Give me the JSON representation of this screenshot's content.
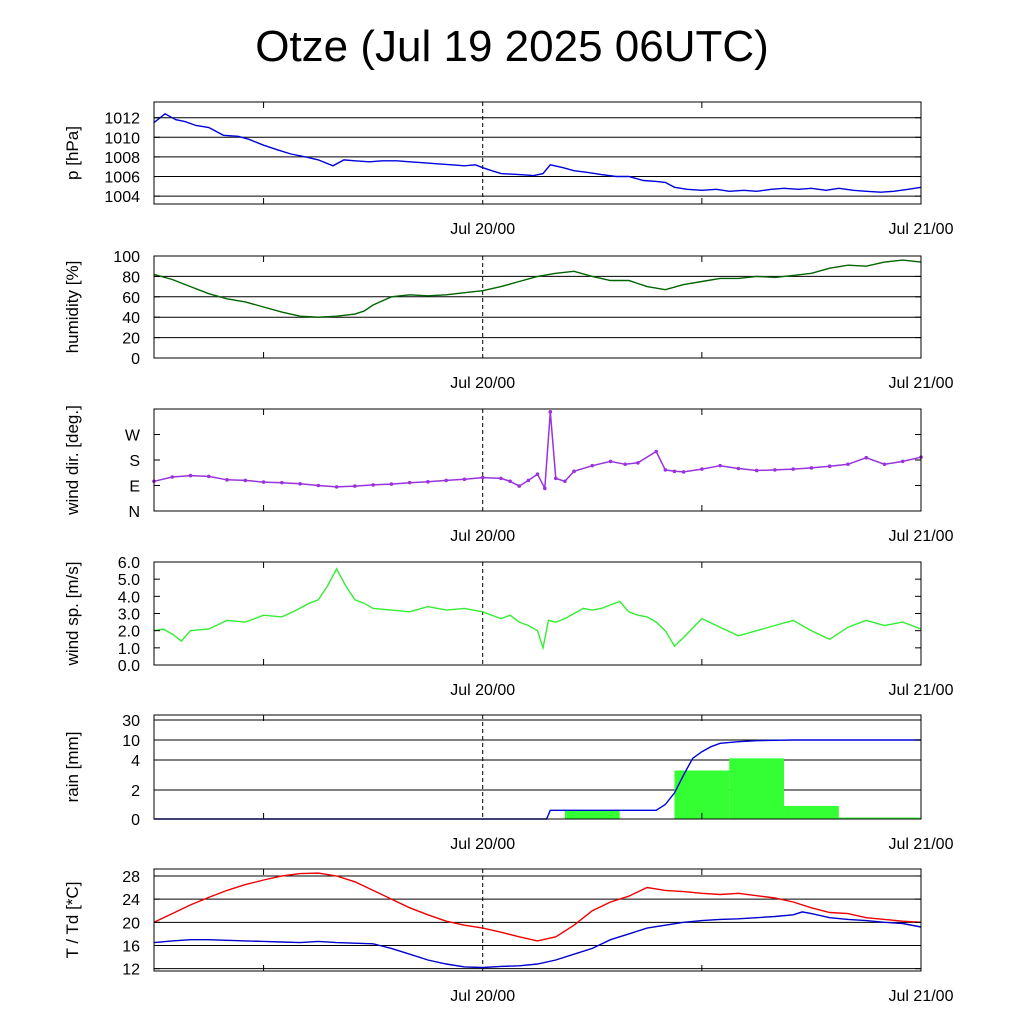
{
  "title": "Otze (Jul 19 2025 06UTC)",
  "colors": {
    "pressure": "#0000dd",
    "humidity": "#006400",
    "wind_dir": "#9933dd",
    "wind_speed": "#33ee33",
    "rain_bar": "#33ff33",
    "rain_line": "#0000dd",
    "temperature": "#ee0000",
    "dewpoint": "#0000cc"
  },
  "chart_data": [
    {
      "type": "line",
      "id": "pressure",
      "ylabel": "p [hPa]",
      "xlim": [
        0,
        42
      ],
      "ylim": [
        1003.2,
        1013.6
      ],
      "yticks": [
        1004,
        1006,
        1008,
        1010,
        1012
      ],
      "ytick_labels": [
        "1004",
        "1006",
        "1008",
        "1010",
        "1012"
      ],
      "xticks": [
        18,
        42
      ],
      "xtick_labels": [
        "Jul 20/00",
        "Jul 21/00"
      ],
      "minor_xticks": [
        6,
        30
      ],
      "vline": 18,
      "grid": true,
      "series": [
        {
          "color_key": "pressure",
          "x": [
            0,
            0.6,
            1.2,
            1.7,
            2.3,
            3.0,
            3.8,
            4.6,
            5.2,
            6.0,
            6.8,
            7.5,
            8.3,
            9.0,
            9.8,
            10.4,
            11.0,
            11.8,
            12.5,
            13.3,
            14.0,
            14.8,
            15.5,
            16.3,
            17.0,
            17.6,
            18.0,
            18.5,
            19.0,
            20.0,
            20.8,
            21.3,
            21.7,
            22.4,
            23.0,
            23.8,
            24.5,
            25.3,
            26.0,
            26.8,
            27.5,
            28.0,
            28.5,
            29.2,
            30.0,
            30.8,
            31.5,
            32.3,
            33.0,
            33.8,
            34.5,
            35.3,
            36.0,
            36.8,
            37.5,
            38.3,
            39.0,
            39.8,
            40.5,
            41.3,
            42.0
          ],
          "y": [
            1011.5,
            1012.4,
            1011.8,
            1011.6,
            1011.2,
            1011.0,
            1010.2,
            1010.1,
            1009.8,
            1009.2,
            1008.7,
            1008.3,
            1008.0,
            1007.7,
            1007.1,
            1007.7,
            1007.6,
            1007.5,
            1007.6,
            1007.6,
            1007.5,
            1007.4,
            1007.3,
            1007.2,
            1007.1,
            1007.2,
            1006.9,
            1006.6,
            1006.3,
            1006.2,
            1006.1,
            1006.3,
            1007.2,
            1006.9,
            1006.6,
            1006.4,
            1006.2,
            1006.0,
            1006.0,
            1005.6,
            1005.5,
            1005.4,
            1004.9,
            1004.7,
            1004.6,
            1004.7,
            1004.5,
            1004.6,
            1004.5,
            1004.7,
            1004.8,
            1004.7,
            1004.8,
            1004.6,
            1004.8,
            1004.6,
            1004.5,
            1004.4,
            1004.5,
            1004.7,
            1004.9
          ]
        }
      ]
    },
    {
      "type": "line",
      "id": "humidity",
      "ylabel": "humidity [%]",
      "xlim": [
        0,
        42
      ],
      "ylim": [
        0,
        100
      ],
      "yticks": [
        0,
        20,
        40,
        60,
        80,
        100
      ],
      "ytick_labels": [
        "0",
        "20",
        "40",
        "60",
        "80",
        "100"
      ],
      "xticks": [
        18,
        42
      ],
      "xtick_labels": [
        "Jul 20/00",
        "Jul 21/00"
      ],
      "minor_xticks": [
        6,
        30
      ],
      "vline": 18,
      "grid": true,
      "series": [
        {
          "color_key": "humidity",
          "x": [
            0,
            1.0,
            2.0,
            3.0,
            4.0,
            5.0,
            6.0,
            7.0,
            8.0,
            9.0,
            10.0,
            11.0,
            11.5,
            12.0,
            13.0,
            14.0,
            15.0,
            16.0,
            17.0,
            18.0,
            19.0,
            20.0,
            21.0,
            22.0,
            23.0,
            24.0,
            25.0,
            26.0,
            27.0,
            28.0,
            29.0,
            30.0,
            31.0,
            32.0,
            33.0,
            34.0,
            35.0,
            36.0,
            37.0,
            38.0,
            39.0,
            40.0,
            41.0,
            42.0
          ],
          "y": [
            82,
            77,
            70,
            63,
            58,
            55,
            50,
            45,
            41,
            40,
            41,
            43,
            46,
            52,
            60,
            62,
            61,
            62,
            64,
            66,
            70,
            75,
            80,
            83,
            85,
            80,
            76,
            76,
            70,
            67,
            72,
            75,
            78,
            78,
            80,
            79,
            81,
            83,
            88,
            91,
            90,
            94,
            96,
            94
          ]
        }
      ]
    },
    {
      "type": "scatter",
      "id": "wind_dir",
      "ylabel": "wind dir. [deg.]",
      "xlim": [
        0,
        42
      ],
      "ylim": [
        0,
        360
      ],
      "yticks": [
        0,
        90,
        180,
        270
      ],
      "ytick_labels": [
        "N",
        "E",
        "S",
        "W"
      ],
      "xticks": [
        18,
        42
      ],
      "xtick_labels": [
        "Jul 20/00",
        "Jul 21/00"
      ],
      "minor_xticks": [
        6,
        30
      ],
      "vline": 18,
      "grid": false,
      "series": [
        {
          "color_key": "wind_dir",
          "x": [
            0,
            1.0,
            2.0,
            3.0,
            4.0,
            5.0,
            6.0,
            7.0,
            8.0,
            9.0,
            10.0,
            11.0,
            12.0,
            13.0,
            14.0,
            15.0,
            16.0,
            17.0,
            18.0,
            19.0,
            19.5,
            20.0,
            20.5,
            21.0,
            21.4,
            21.7,
            22.0,
            22.5,
            23.0,
            24.0,
            25.0,
            25.8,
            26.5,
            27.5,
            28.0,
            28.5,
            29.0,
            30.0,
            31.0,
            32.0,
            33.0,
            34.0,
            35.0,
            36.0,
            37.0,
            38.0,
            39.0,
            40.0,
            41.0,
            42.0
          ],
          "y": [
            105,
            120,
            125,
            122,
            110,
            108,
            102,
            100,
            96,
            90,
            85,
            88,
            92,
            95,
            100,
            103,
            108,
            112,
            118,
            115,
            105,
            88,
            108,
            130,
            80,
            350,
            115,
            105,
            140,
            160,
            175,
            165,
            170,
            210,
            145,
            140,
            138,
            148,
            160,
            150,
            143,
            145,
            148,
            152,
            158,
            165,
            188,
            165,
            175,
            190
          ]
        }
      ]
    },
    {
      "type": "line",
      "id": "wind_speed",
      "ylabel": "wind sp. [m/s]",
      "xlim": [
        0,
        42
      ],
      "ylim": [
        0,
        6.0
      ],
      "yticks": [
        0.0,
        1.0,
        2.0,
        3.0,
        4.0,
        5.0,
        6.0
      ],
      "ytick_labels": [
        "0.0",
        "1.0",
        "2.0",
        "3.0",
        "4.0",
        "5.0",
        "6.0"
      ],
      "xticks": [
        18,
        42
      ],
      "xtick_labels": [
        "Jul 20/00",
        "Jul 21/00"
      ],
      "minor_xticks": [
        6,
        30
      ],
      "vline": 18,
      "grid": false,
      "series": [
        {
          "color_key": "wind_speed",
          "x": [
            0,
            0.5,
            1.0,
            1.5,
            2.0,
            3.0,
            4.0,
            5.0,
            6.0,
            7.0,
            7.8,
            8.5,
            9.0,
            9.5,
            10.0,
            10.5,
            11.0,
            11.5,
            12.0,
            13.0,
            14.0,
            15.0,
            16.0,
            17.0,
            18.0,
            19.0,
            19.5,
            20.0,
            20.5,
            21.0,
            21.3,
            21.6,
            22.0,
            22.5,
            23.0,
            23.5,
            24.0,
            24.5,
            25.0,
            25.5,
            26.0,
            26.5,
            27.0,
            27.5,
            28.0,
            28.5,
            29.0,
            30.0,
            31.0,
            32.0,
            33.0,
            34.0,
            35.0,
            36.0,
            37.0,
            38.0,
            39.0,
            40.0,
            41.0,
            42.0
          ],
          "y": [
            2.0,
            2.1,
            1.8,
            1.4,
            2.0,
            2.1,
            2.6,
            2.5,
            2.9,
            2.8,
            3.2,
            3.6,
            3.8,
            4.6,
            5.6,
            4.6,
            3.8,
            3.6,
            3.3,
            3.2,
            3.1,
            3.4,
            3.2,
            3.3,
            3.1,
            2.7,
            2.9,
            2.5,
            2.3,
            2.0,
            1.0,
            2.6,
            2.5,
            2.7,
            3.0,
            3.3,
            3.2,
            3.3,
            3.5,
            3.7,
            3.1,
            2.9,
            2.8,
            2.5,
            2.0,
            1.1,
            1.6,
            2.7,
            2.2,
            1.7,
            2.0,
            2.3,
            2.6,
            2.0,
            1.5,
            2.2,
            2.6,
            2.3,
            2.5,
            2.1
          ]
        }
      ]
    },
    {
      "type": "bar",
      "id": "rain",
      "ylabel": "rain [mm]",
      "xlim": [
        0,
        42
      ],
      "yticks": [
        0,
        2,
        4,
        10,
        30
      ],
      "ytick_labels": [
        "0",
        "2",
        "4",
        "10",
        "30"
      ],
      "scale": "nonlinear",
      "xticks": [
        18,
        42
      ],
      "xtick_labels": [
        "Jul 20/00",
        "Jul 21/00"
      ],
      "minor_xticks": [
        6,
        30
      ],
      "vline": 18,
      "grid": true,
      "bars": {
        "color_key": "rain_bar",
        "bins": [
          [
            22.5,
            25.5
          ],
          [
            28.5,
            31.5
          ],
          [
            31.5,
            34.5
          ],
          [
            34.5,
            37.5
          ],
          [
            37.5,
            42.0
          ]
        ],
        "values": [
          0.6,
          3.3,
          4.5,
          0.9,
          0.1
        ]
      },
      "series": [
        {
          "name": "accumulated",
          "color_key": "rain_line",
          "x": [
            0,
            21.5,
            21.7,
            27.5,
            28.0,
            28.5,
            29.0,
            29.5,
            30.0,
            30.5,
            31.0,
            32.0,
            33.0,
            34.0,
            35.0,
            36.0,
            42.0
          ],
          "y": [
            0,
            0,
            0.6,
            0.6,
            1.0,
            1.8,
            3.0,
            4.5,
            6.5,
            8.0,
            9.0,
            9.5,
            9.8,
            9.9,
            10.0,
            10.0,
            10.0
          ]
        }
      ]
    },
    {
      "type": "line",
      "id": "temperature",
      "ylabel": "T / Td [*C]",
      "xlim": [
        0,
        42
      ],
      "ylim": [
        11.6,
        29.2
      ],
      "yticks": [
        12,
        16,
        20,
        24,
        28
      ],
      "ytick_labels": [
        "12",
        "16",
        "20",
        "24",
        "28"
      ],
      "xticks": [
        18,
        42
      ],
      "xtick_labels": [
        "Jul 20/00",
        "Jul 21/00"
      ],
      "minor_xticks": [
        6,
        30
      ],
      "vline": 18,
      "grid": true,
      "series": [
        {
          "color_key": "temperature",
          "x": [
            0,
            1.0,
            2.0,
            3.0,
            4.0,
            5.0,
            6.0,
            7.0,
            8.0,
            9.0,
            10.0,
            11.0,
            12.0,
            13.0,
            14.0,
            15.0,
            16.0,
            17.0,
            18.0,
            19.0,
            20.0,
            21.0,
            22.0,
            23.0,
            24.0,
            25.0,
            26.0,
            27.0,
            28.0,
            29.0,
            30.0,
            31.0,
            32.0,
            33.0,
            34.0,
            35.0,
            36.0,
            37.0,
            38.0,
            39.0,
            40.0,
            41.0,
            42.0
          ],
          "y": [
            20.0,
            21.5,
            23.0,
            24.3,
            25.5,
            26.5,
            27.3,
            28.0,
            28.4,
            28.5,
            28.0,
            27.0,
            25.5,
            24.0,
            22.5,
            21.3,
            20.2,
            19.5,
            19.0,
            18.3,
            17.5,
            16.8,
            17.5,
            19.5,
            22.0,
            23.5,
            24.5,
            26.0,
            25.5,
            25.3,
            25.0,
            24.8,
            25.0,
            24.6,
            24.2,
            23.5,
            22.5,
            21.7,
            21.5,
            20.8,
            20.5,
            20.2,
            20.0
          ]
        },
        {
          "color_key": "dewpoint",
          "x": [
            0,
            1.0,
            2.0,
            3.0,
            4.0,
            5.0,
            6.0,
            7.0,
            8.0,
            9.0,
            10.0,
            11.0,
            12.0,
            13.0,
            14.0,
            15.0,
            16.0,
            17.0,
            18.0,
            19.0,
            20.0,
            21.0,
            22.0,
            23.0,
            24.0,
            25.0,
            26.0,
            27.0,
            28.0,
            29.0,
            30.0,
            31.0,
            32.0,
            33.0,
            34.0,
            35.0,
            35.5,
            36.0,
            37.0,
            38.0,
            39.0,
            40.0,
            41.0,
            42.0
          ],
          "y": [
            16.5,
            16.8,
            17.0,
            17.0,
            16.9,
            16.8,
            16.7,
            16.6,
            16.5,
            16.7,
            16.5,
            16.4,
            16.3,
            15.5,
            14.5,
            13.5,
            12.8,
            12.3,
            12.2,
            12.4,
            12.5,
            12.8,
            13.5,
            14.5,
            15.5,
            17.0,
            18.0,
            19.0,
            19.5,
            20.0,
            20.3,
            20.5,
            20.6,
            20.8,
            21.0,
            21.3,
            21.8,
            21.5,
            20.8,
            20.5,
            20.3,
            20.0,
            19.8,
            19.2
          ]
        }
      ]
    }
  ]
}
